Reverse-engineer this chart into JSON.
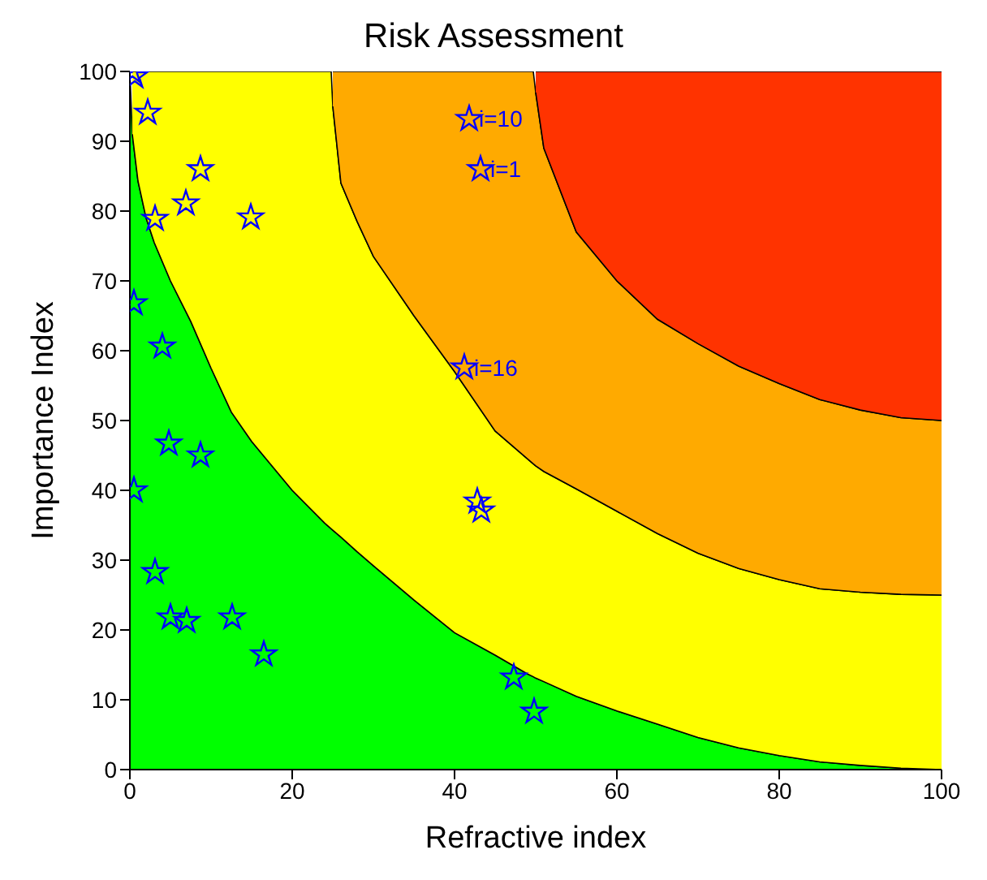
{
  "chart_data": {
    "type": "area",
    "title": "Risk Assessment",
    "xlabel": "Refractive index",
    "ylabel": "Importance Index",
    "x": [
      0,
      0.3,
      1,
      2,
      3,
      5,
      7.5,
      10,
      12.5,
      15,
      20,
      24,
      24.8,
      25,
      26,
      28,
      30,
      35,
      40,
      45,
      49,
      49.7,
      50,
      51,
      55,
      60,
      65,
      70,
      75,
      80,
      85,
      90,
      95,
      100
    ],
    "series": [
      {
        "color": "#00ff00",
        "values": [
          100,
          91,
          84.3,
          79,
          75.5,
          70,
          64.2,
          57.5,
          51.2,
          47,
          40,
          35.3,
          34.5,
          34.3,
          33.3,
          31.2,
          29.2,
          24.3,
          19.6,
          16.4,
          13.7,
          13.3,
          13.1,
          12.6,
          10.5,
          8.4,
          6.5,
          4.6,
          3.1,
          2,
          1.1,
          0.6,
          0.2,
          0
        ]
      },
      {
        "color": "#ffff00",
        "values": [
          null,
          9,
          15.7,
          21,
          24.5,
          30,
          35.8,
          42.5,
          48.8,
          53,
          60,
          64.7,
          65.5,
          60.7,
          50.7,
          47.3,
          44.3,
          40.7,
          37.4,
          32.1,
          30.8,
          30.5,
          30.4,
          30.1,
          29.7,
          28.6,
          27.3,
          26.4,
          25.7,
          25.2,
          24.8,
          24.8,
          24.9,
          25
        ]
      },
      {
        "color": "#ffaa00",
        "values": [
          null,
          null,
          null,
          null,
          null,
          null,
          null,
          null,
          null,
          null,
          null,
          null,
          null,
          5,
          16,
          21.5,
          26.5,
          35,
          43,
          51.5,
          55.5,
          56.2,
          53.5,
          46.3,
          36.8,
          33,
          30.7,
          30,
          29,
          28.1,
          27.1,
          26.1,
          25.3,
          25
        ]
      },
      {
        "color": "#ff3300",
        "values": [
          null,
          null,
          null,
          null,
          null,
          null,
          null,
          null,
          null,
          null,
          null,
          null,
          null,
          null,
          null,
          null,
          null,
          null,
          null,
          null,
          null,
          null,
          3,
          11,
          23,
          30,
          35.5,
          39,
          42.2,
          44.7,
          47,
          48.5,
          49.6,
          50
        ]
      },
      {
        "type": "scatter",
        "color": "#0000ff",
        "marker": "star",
        "x": [
          0.3,
          0.6,
          2.2,
          8.7,
          6.9,
          3.1,
          14.9,
          0.5,
          4,
          41.8,
          43.2,
          41.2,
          4.8,
          8.7,
          0.5,
          3.1,
          5,
          7,
          12.6,
          16.5,
          42.8,
          43.3,
          47.3,
          49.8
        ],
        "values": [
          100,
          99.3,
          94.1,
          86,
          81.1,
          78.9,
          79.1,
          66.8,
          60.6,
          93.2,
          86,
          57.6,
          46.7,
          45,
          40,
          28.3,
          21.8,
          21.3,
          21.8,
          16.5,
          38.4,
          37.1,
          13.2,
          8.3
        ]
      }
    ],
    "annotations": [
      {
        "text": "i=10",
        "x": 41.8,
        "y": 93.2
      },
      {
        "text": "i=1",
        "x": 43.2,
        "y": 86
      },
      {
        "text": "i=16",
        "x": 41.2,
        "y": 57.6
      }
    ],
    "stacked": true,
    "xlim": [
      0,
      100
    ],
    "ylim": [
      0,
      100
    ],
    "xticks": [
      0,
      20,
      40,
      60,
      80,
      100
    ],
    "yticks": [
      0,
      10,
      20,
      30,
      40,
      50,
      60,
      70,
      80,
      90,
      100
    ],
    "grid": false,
    "legend": false
  }
}
